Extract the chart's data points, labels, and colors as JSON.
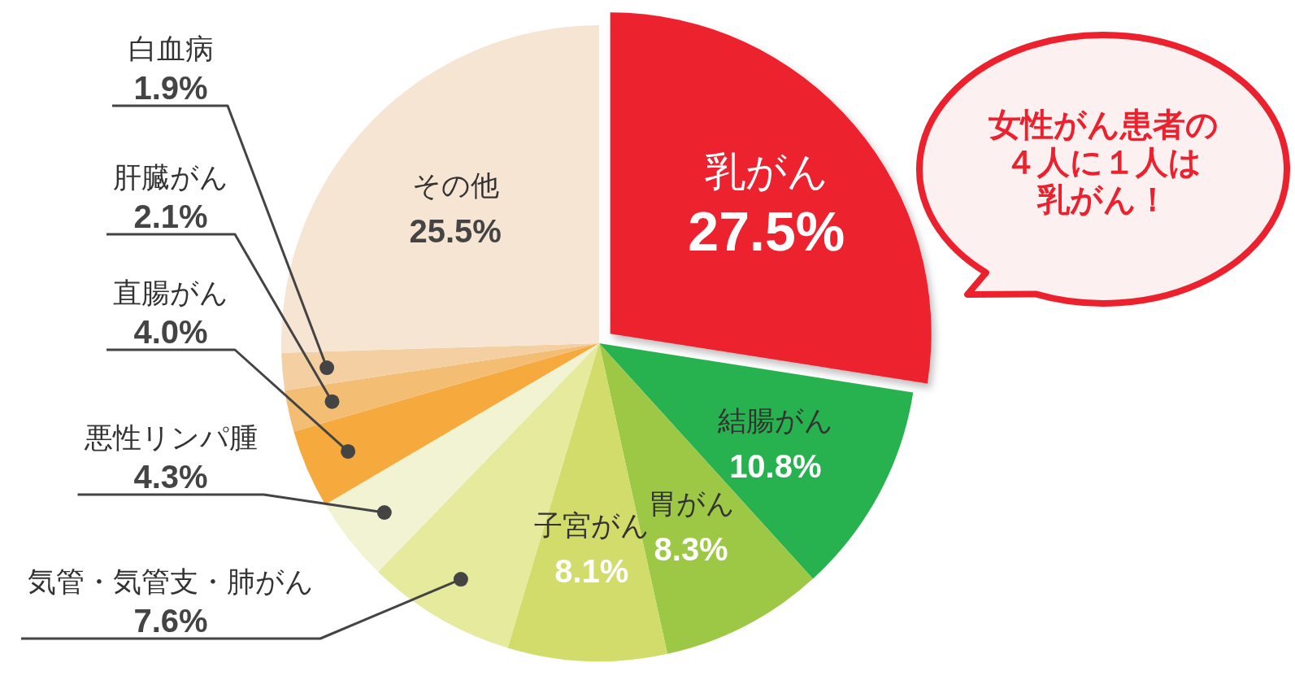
{
  "chart_data": {
    "type": "pie",
    "categories": [
      "乳がん",
      "結腸がん",
      "胃がん",
      "子宮がん",
      "気管・気管支・肺がん",
      "悪性リンパ腫",
      "直腸がん",
      "肝臓がん",
      "白血病",
      "その他"
    ],
    "values": [
      27.5,
      10.8,
      8.3,
      8.1,
      7.6,
      4.3,
      4.0,
      2.1,
      1.9,
      25.5
    ],
    "value_labels": [
      "27.5%",
      "10.8%",
      "8.3%",
      "8.1%",
      "7.6%",
      "4.3%",
      "4.0%",
      "2.1%",
      "1.9%",
      "25.5%"
    ],
    "colors": [
      "#ec212e",
      "#28b14f",
      "#9cc845",
      "#d1dc6b",
      "#e5ea9c",
      "#f1f3d2",
      "#f6aa3d",
      "#f3bd74",
      "#f4cfa1",
      "#f7e5d3"
    ],
    "annotations": [
      "女性がん患者の",
      "４人に１人は",
      "乳がん！"
    ]
  }
}
